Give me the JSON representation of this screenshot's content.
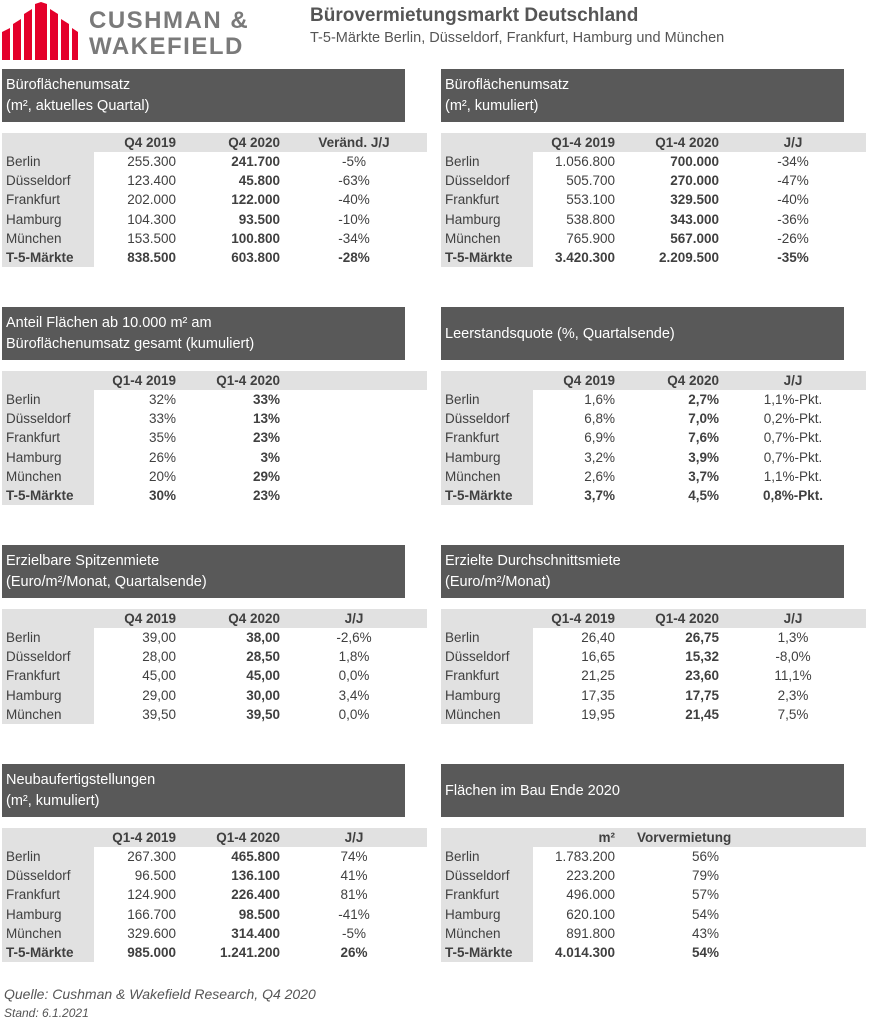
{
  "brand": {
    "line1": "CUSHMAN &",
    "line2": "WAKEFIELD",
    "color": "#e4002b"
  },
  "title": "Bürovermietungsmarkt Deutschland",
  "subtitle": "T-5-Märkte Berlin, Düsseldorf, Frankfurt, Hamburg und München",
  "panels": [
    {
      "head1": "Büroflächenumsatz",
      "head2": "(m², aktuelles Quartal)",
      "cols": [
        "",
        "Q4 2019",
        "Q4 2020",
        "Veränd. J/J"
      ],
      "rows": [
        [
          "Berlin",
          "255.300",
          "241.700",
          "-5%"
        ],
        [
          "Düsseldorf",
          "123.400",
          "45.800",
          "-63%"
        ],
        [
          "Frankfurt",
          "202.000",
          "122.000",
          "-40%"
        ],
        [
          "Hamburg",
          "104.300",
          "93.500",
          "-10%"
        ],
        [
          "München",
          "153.500",
          "100.800",
          "-34%"
        ],
        [
          "T-5-Märkte",
          "838.500",
          "603.800",
          "-28%"
        ]
      ]
    },
    {
      "head1": "Büroflächenumsatz",
      "head2": "(m², kumuliert)",
      "cols": [
        "",
        "Q1-4 2019",
        "Q1-4 2020",
        "J/J"
      ],
      "rows": [
        [
          "Berlin",
          "1.056.800",
          "700.000",
          "-34%"
        ],
        [
          "Düsseldorf",
          "505.700",
          "270.000",
          "-47%"
        ],
        [
          "Frankfurt",
          "553.100",
          "329.500",
          "-40%"
        ],
        [
          "Hamburg",
          "538.800",
          "343.000",
          "-36%"
        ],
        [
          "München",
          "765.900",
          "567.000",
          "-26%"
        ],
        [
          "T-5-Märkte",
          "3.420.300",
          "2.209.500",
          "-35%"
        ]
      ]
    },
    {
      "head1": "Anteil Flächen ab 10.000 m² am",
      "head2": "Büroflächenumsatz gesamt (kumuliert)",
      "cols": [
        "",
        "Q1-4 2019",
        "Q1-4 2020",
        ""
      ],
      "rows": [
        [
          "Berlin",
          "32%",
          "33%",
          ""
        ],
        [
          "Düsseldorf",
          "33%",
          "13%",
          ""
        ],
        [
          "Frankfurt",
          "35%",
          "23%",
          ""
        ],
        [
          "Hamburg",
          "26%",
          "3%",
          ""
        ],
        [
          "München",
          "20%",
          "29%",
          ""
        ],
        [
          "T-5-Märkte",
          "30%",
          "23%",
          ""
        ]
      ]
    },
    {
      "head1": "Leerstandsquote (%, Quartalsende)",
      "head2": "",
      "cols": [
        "",
        "Q4 2019",
        "Q4 2020",
        "J/J"
      ],
      "rows": [
        [
          "Berlin",
          "1,6%",
          "2,7%",
          "1,1%-Pkt."
        ],
        [
          "Düsseldorf",
          "6,8%",
          "7,0%",
          "0,2%-Pkt."
        ],
        [
          "Frankfurt",
          "6,9%",
          "7,6%",
          "0,7%-Pkt."
        ],
        [
          "Hamburg",
          "3,2%",
          "3,9%",
          "0,7%-Pkt."
        ],
        [
          "München",
          "2,6%",
          "3,7%",
          "1,1%-Pkt."
        ],
        [
          "T-5-Märkte",
          "3,7%",
          "4,5%",
          "0,8%-Pkt."
        ]
      ]
    },
    {
      "head1": "Erzielbare Spitzenmiete",
      "head2": "(Euro/m²/Monat, Quartalsende)",
      "cols": [
        "",
        "Q4 2019",
        "Q4 2020",
        "J/J"
      ],
      "rows": [
        [
          "Berlin",
          "39,00",
          "38,00",
          "-2,6%"
        ],
        [
          "Düsseldorf",
          "28,00",
          "28,50",
          "1,8%"
        ],
        [
          "Frankfurt",
          "45,00",
          "45,00",
          "0,0%"
        ],
        [
          "Hamburg",
          "29,00",
          "30,00",
          "3,4%"
        ],
        [
          "München",
          "39,50",
          "39,50",
          "0,0%"
        ]
      ]
    },
    {
      "head1": "Erzielte Durchschnittsmiete",
      "head2": "(Euro/m²/Monat)",
      "cols": [
        "",
        "Q1-4 2019",
        "Q1-4 2020",
        "J/J"
      ],
      "rows": [
        [
          "Berlin",
          "26,40",
          "26,75",
          "1,3%"
        ],
        [
          "Düsseldorf",
          "16,65",
          "15,32",
          "-8,0%"
        ],
        [
          "Frankfurt",
          "21,25",
          "23,60",
          "11,1%"
        ],
        [
          "Hamburg",
          "17,35",
          "17,75",
          "2,3%"
        ],
        [
          "München",
          "19,95",
          "21,45",
          "7,5%"
        ]
      ]
    },
    {
      "head1": "Neubaufertigstellungen",
      "head2": "(m², kumuliert)",
      "cols": [
        "",
        "Q1-4 2019",
        "Q1-4 2020",
        "J/J"
      ],
      "rows": [
        [
          "Berlin",
          "267.300",
          "465.800",
          "74%"
        ],
        [
          "Düsseldorf",
          "96.500",
          "136.100",
          "41%"
        ],
        [
          "Frankfurt",
          "124.900",
          "226.400",
          "81%"
        ],
        [
          "Hamburg",
          "166.700",
          "98.500",
          "-41%"
        ],
        [
          "München",
          "329.600",
          "314.400",
          "-5%"
        ],
        [
          "T-5-Märkte",
          "985.000",
          "1.241.200",
          "26%"
        ]
      ]
    },
    {
      "head1": "Flächen im Bau Ende 2020",
      "head2": "",
      "cols": [
        "",
        "m²",
        "Vorvermietung",
        ""
      ],
      "rows": [
        [
          "Berlin",
          "1.783.200",
          "56%",
          ""
        ],
        [
          "Düsseldorf",
          "223.200",
          "79%",
          ""
        ],
        [
          "Frankfurt",
          "496.000",
          "57%",
          ""
        ],
        [
          "Hamburg",
          "620.100",
          "54%",
          ""
        ],
        [
          "München",
          "891.800",
          "43%",
          ""
        ],
        [
          "T-5-Märkte",
          "4.014.300",
          "54%",
          ""
        ]
      ]
    }
  ],
  "footer": {
    "source": "Quelle: Cushman & Wakefield Research, Q4 2020",
    "date": "Stand: 6.1.2021"
  }
}
